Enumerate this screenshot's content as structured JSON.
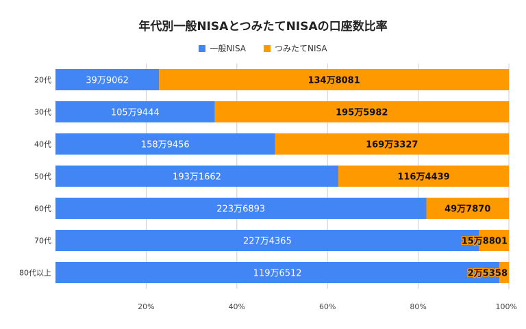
{
  "colors": {
    "ippan": "#4285f4",
    "tsumitate": "#ff9900",
    "grid": "#cccccc"
  },
  "chart_data": {
    "type": "bar",
    "orientation": "horizontal",
    "stacked": "percent",
    "title": "年代別一般NISAとつみたてNISAの口座数比率",
    "legend_position": "top",
    "xlim": [
      0,
      100
    ],
    "x_ticks": [
      {
        "value": 20,
        "label": "20%"
      },
      {
        "value": 40,
        "label": "40%"
      },
      {
        "value": 60,
        "label": "60%"
      },
      {
        "value": 80,
        "label": "80%"
      },
      {
        "value": 100,
        "label": "100%"
      }
    ],
    "categories": [
      "20代",
      "30代",
      "40代",
      "50代",
      "60代",
      "70代",
      "80代以上"
    ],
    "series": [
      {
        "name": "一般NISA",
        "values": [
          399062,
          1059444,
          1589456,
          1931662,
          2236893,
          2274365,
          1196512
        ],
        "labels": [
          "39万9062",
          "105万9444",
          "158万9456",
          "193万1662",
          "223万6893",
          "227万4365",
          "119万6512"
        ]
      },
      {
        "name": "つみたてNISA",
        "values": [
          1348081,
          1955982,
          1693327,
          1164439,
          497870,
          158801,
          25358
        ],
        "labels": [
          "134万8081",
          "195万5982",
          "169万3327",
          "116万4439",
          "49万7870",
          "15万8801",
          "2万5358"
        ]
      }
    ]
  }
}
